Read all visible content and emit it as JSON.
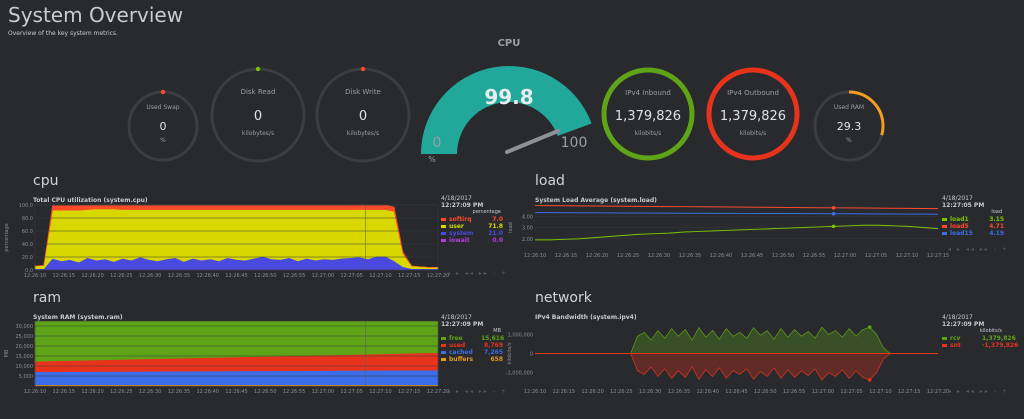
{
  "header": {
    "title": "System Overview",
    "subtitle": "Overview of the key system metrics."
  },
  "gauges": {
    "used_swap": {
      "label": "Used Swap",
      "value": "0",
      "units": "%",
      "color": "#ff4a2b"
    },
    "disk_read": {
      "label": "Disk Read",
      "value": "0",
      "units": "kilobytes/s",
      "color": "#7ec300"
    },
    "disk_write": {
      "label": "Disk Write",
      "value": "0",
      "units": "kilobytes/s",
      "color": "#ff4a2b"
    },
    "cpu": {
      "label": "CPU",
      "value": "99.8",
      "min": "0",
      "max": "100",
      "units": "%",
      "color": "#22a89a",
      "level": 99.8
    },
    "ipv4_inbound": {
      "label": "IPv4 Inbound",
      "value": "1,379,826",
      "units": "kilobits/s",
      "color": "#5fa416",
      "level": 1.0
    },
    "ipv4_outbound": {
      "label": "IPv4 Outbound",
      "value": "1,379,826",
      "units": "kilobits/s",
      "color": "#e8331c",
      "level": 1.0
    },
    "used_ram": {
      "label": "Used RAM",
      "value": "29.3",
      "units": "%",
      "color": "#f39c1f",
      "level": 0.293
    }
  },
  "sections": {
    "cpu": {
      "heading": "cpu",
      "title": "Total CPU utilization (system.cpu)",
      "date": "4/18/2017",
      "time": "12:27:09 PM",
      "units": "percentage",
      "ylabel": "percentage",
      "legend": [
        {
          "name": "softirq",
          "value": "7.0",
          "color": "#ff4a2b"
        },
        {
          "name": "user",
          "value": "71.8",
          "color": "#d8d800"
        },
        {
          "name": "system",
          "value": "21.0",
          "color": "#4a4ae0"
        },
        {
          "name": "iowait",
          "value": "0.0",
          "color": "#b040d8"
        }
      ]
    },
    "load": {
      "heading": "load",
      "title": "System Load Average (system.load)",
      "date": "4/18/2017",
      "time": "12:27:05 PM",
      "units": "load",
      "ylabel": "load",
      "legend": [
        {
          "name": "load1",
          "value": "3.15",
          "color": "#7ec300"
        },
        {
          "name": "load5",
          "value": "4.71",
          "color": "#ff4a2b"
        },
        {
          "name": "load15",
          "value": "4.19",
          "color": "#3b6ee8"
        }
      ]
    },
    "ram": {
      "heading": "ram",
      "title": "System RAM (system.ram)",
      "date": "4/18/2017",
      "time": "12:27:09 PM",
      "units": "MB",
      "ylabel": "MB",
      "legend": [
        {
          "name": "free",
          "value": "15,616",
          "color": "#5fa416"
        },
        {
          "name": "used",
          "value": "8,769",
          "color": "#e8331c"
        },
        {
          "name": "cached",
          "value": "7,265",
          "color": "#3b6ee8"
        },
        {
          "name": "buffers",
          "value": "658",
          "color": "#e89a1f"
        }
      ]
    },
    "network": {
      "heading": "network",
      "title": "IPv4 Bandwidth (system.ipv4)",
      "date": "4/18/2017",
      "time": "12:27:09 PM",
      "units": "kilobits/s",
      "ylabel": "kilobits/s",
      "legend": [
        {
          "name": "rcv",
          "value": "1,379,826",
          "color": "#5fa416"
        },
        {
          "name": "snt",
          "value": "-1,379,826",
          "color": "#e8331c"
        }
      ]
    }
  },
  "controls_glyphs": "◂ ▸ ◂◂ ▸▸ - +",
  "chart_data": [
    {
      "type": "area",
      "title": "Total CPU utilization (system.cpu)",
      "ylabel": "percentage",
      "ylim": [
        0,
        100
      ],
      "yticks": [
        "100.0",
        "80.0",
        "60.0",
        "40.0",
        "20.0",
        "0.0"
      ],
      "xticks": [
        "12:26:10",
        "12:26:15",
        "12:26:20",
        "12:26:25",
        "12:26:30",
        "12:26:35",
        "12:26:40",
        "12:26:45",
        "12:26:50",
        "12:26:55",
        "12:27:00",
        "12:27:05",
        "12:27:10",
        "12:27:15",
        "12:27:20"
      ],
      "series": [
        {
          "name": "system",
          "values": [
            2,
            2,
            18,
            14,
            16,
            12,
            19,
            15,
            17,
            13,
            18,
            15,
            20,
            16,
            14,
            17,
            19,
            13,
            18,
            15,
            17,
            14,
            19,
            16,
            15,
            18,
            21,
            17,
            16,
            19,
            14,
            18,
            15,
            17,
            16,
            18,
            19,
            20,
            17,
            21,
            21,
            14,
            5,
            2,
            2,
            2,
            2
          ]
        },
        {
          "name": "user",
          "values": [
            4,
            5,
            74,
            78,
            76,
            80,
            74,
            79,
            77,
            81,
            75,
            78,
            73,
            77,
            79,
            76,
            74,
            80,
            75,
            78,
            76,
            79,
            74,
            77,
            78,
            75,
            72,
            76,
            77,
            74,
            79,
            75,
            78,
            76,
            77,
            75,
            74,
            73,
            76,
            72,
            72,
            76,
            20,
            4,
            3,
            2,
            2
          ]
        },
        {
          "name": "softirq",
          "values": [
            0,
            0,
            7,
            7,
            7,
            7,
            7,
            6,
            6,
            6,
            7,
            7,
            7,
            7,
            7,
            7,
            7,
            7,
            7,
            7,
            7,
            7,
            7,
            7,
            7,
            7,
            7,
            7,
            7,
            7,
            7,
            7,
            7,
            7,
            7,
            7,
            7,
            7,
            7,
            7,
            7,
            7,
            3,
            0,
            0,
            0,
            0
          ]
        }
      ]
    },
    {
      "type": "line",
      "title": "System Load Average (system.load)",
      "ylabel": "load",
      "ylim": [
        1,
        5
      ],
      "yticks": [
        "4.00",
        "3.00",
        "2.00"
      ],
      "xticks": [
        "12:26:10",
        "12:26:15",
        "12:26:20",
        "12:26:25",
        "12:26:30",
        "12:26:35",
        "12:26:40",
        "12:26:45",
        "12:26:50",
        "12:26:55",
        "12:27:00",
        "12:27:05",
        "12:27:10",
        "12:27:15"
      ],
      "series": [
        {
          "name": "load1",
          "values": [
            1.9,
            1.9,
            1.95,
            2.0,
            2.1,
            2.2,
            2.3,
            2.4,
            2.45,
            2.5,
            2.6,
            2.65,
            2.7,
            2.75,
            2.8,
            2.85,
            2.9,
            2.95,
            3.0,
            3.05,
            3.1,
            3.15,
            3.2,
            3.2,
            3.15,
            3.1,
            3.0,
            2.9
          ]
        },
        {
          "name": "load5",
          "values": [
            4.95,
            4.94,
            4.93,
            4.92,
            4.91,
            4.9,
            4.89,
            4.88,
            4.87,
            4.86,
            4.85,
            4.84,
            4.83,
            4.82,
            4.81,
            4.8,
            4.79,
            4.78,
            4.77,
            4.76,
            4.75,
            4.74,
            4.73,
            4.72,
            4.71,
            4.7,
            4.69,
            4.68
          ]
        },
        {
          "name": "load15",
          "values": [
            4.32,
            4.32,
            4.31,
            4.31,
            4.3,
            4.3,
            4.29,
            4.29,
            4.28,
            4.28,
            4.27,
            4.27,
            4.26,
            4.26,
            4.25,
            4.25,
            4.24,
            4.24,
            4.23,
            4.23,
            4.22,
            4.22,
            4.21,
            4.2,
            4.2,
            4.19,
            4.19,
            4.18
          ]
        }
      ]
    },
    {
      "type": "area",
      "title": "System RAM (system.ram)",
      "ylabel": "MB",
      "ylim": [
        0,
        32500
      ],
      "yticks": [
        "30,000",
        "25,000",
        "20,000",
        "15,000",
        "10,000",
        "5,000"
      ],
      "xticks": [
        "12:26:10",
        "12:26:15",
        "12:26:20",
        "12:26:25",
        "12:26:30",
        "12:26:35",
        "12:26:40",
        "12:26:45",
        "12:26:50",
        "12:26:55",
        "12:27:00",
        "12:27:05",
        "12:27:10",
        "12:27:15",
        "12:27:20"
      ],
      "series": [
        {
          "name": "buffers",
          "values": [
            658,
            658,
            658,
            658,
            658,
            658,
            658,
            658,
            658,
            658,
            658,
            658,
            658
          ]
        },
        {
          "name": "cached",
          "values": [
            6400,
            6480,
            6560,
            6640,
            6720,
            6800,
            6880,
            6950,
            7020,
            7090,
            7160,
            7220,
            7265
          ]
        },
        {
          "name": "used",
          "values": [
            5300,
            5580,
            5860,
            6140,
            6420,
            6700,
            6980,
            7260,
            7540,
            7820,
            8100,
            8450,
            8769
          ]
        },
        {
          "name": "free",
          "values": [
            19950,
            19590,
            19230,
            18870,
            18510,
            18150,
            17790,
            17440,
            17090,
            16740,
            16390,
            15980,
            15616
          ]
        }
      ]
    },
    {
      "type": "area",
      "title": "IPv4 Bandwidth (system.ipv4)",
      "ylabel": "kilobits/s",
      "ylim": [
        -1700000,
        1700000
      ],
      "yticks": [
        "1,000,000",
        "0",
        "-1,000,000"
      ],
      "xticks": [
        "12:26:10",
        "12:26:15",
        "12:26:20",
        "12:26:25",
        "12:26:30",
        "12:26:35",
        "12:26:40",
        "12:26:45",
        "12:26:50",
        "12:26:55",
        "12:27:00",
        "12:27:05",
        "12:27:10",
        "12:27:15",
        "12:27:20"
      ],
      "series": [
        {
          "name": "rcv",
          "values": [
            0,
            0,
            0,
            0,
            0,
            0,
            0,
            0,
            0,
            0,
            0,
            0,
            0,
            0,
            0,
            900000,
            1100000,
            700000,
            1200000,
            800000,
            1300000,
            900000,
            1250000,
            700000,
            1350000,
            850000,
            1200000,
            750000,
            1300000,
            900000,
            1100000,
            800000,
            1350000,
            950000,
            1200000,
            750000,
            1300000,
            850000,
            1250000,
            900000,
            1150000,
            800000,
            1380000,
            1000000,
            1200000,
            850000,
            1300000,
            900000,
            1250000,
            1380000,
            1000000,
            300000,
            0,
            0,
            0,
            0,
            0,
            0,
            0,
            0
          ]
        },
        {
          "name": "snt",
          "values": [
            0,
            0,
            0,
            0,
            0,
            0,
            0,
            0,
            0,
            0,
            0,
            0,
            0,
            0,
            0,
            -900000,
            -1100000,
            -700000,
            -1200000,
            -800000,
            -1300000,
            -900000,
            -1250000,
            -700000,
            -1350000,
            -850000,
            -1200000,
            -750000,
            -1300000,
            -900000,
            -1100000,
            -800000,
            -1350000,
            -950000,
            -1200000,
            -750000,
            -1300000,
            -850000,
            -1250000,
            -900000,
            -1150000,
            -800000,
            -1380000,
            -1000000,
            -1200000,
            -850000,
            -1300000,
            -900000,
            -1250000,
            -1380000,
            -1000000,
            -300000,
            0,
            0,
            0,
            0,
            0,
            0,
            0,
            0
          ]
        }
      ]
    }
  ]
}
